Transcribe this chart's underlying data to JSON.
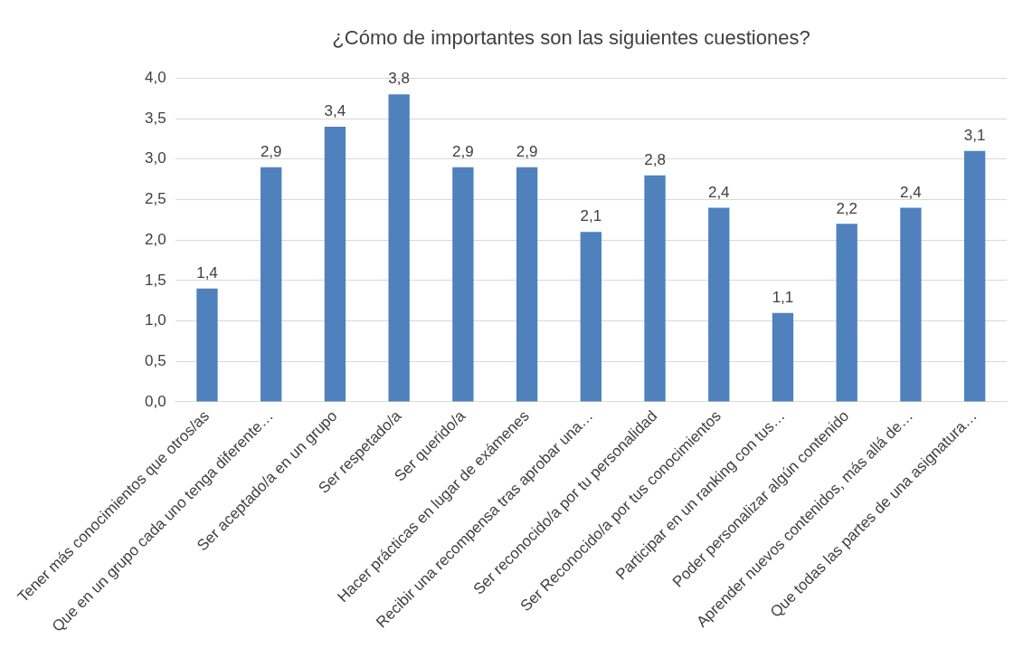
{
  "chart_data": {
    "type": "bar",
    "title": "¿Cómo de importantes son las siguientes cuestiones?",
    "categories": [
      "Tener más conocimientos que otros/as",
      "Que en un grupo cada uno tenga diferente…",
      "Ser aceptado/a en un grupo",
      "Ser respetado/a",
      "Ser querido/a",
      "Hacer prácticas en lugar de exámenes",
      "Recibir una recompensa tras aprobar una…",
      "Ser reconocido/a por tu personalidad",
      "Ser Reconocido/a por tus conocimientos",
      "Participar en un ranking con tus…",
      "Poder personalizar algún contenido",
      "Aprender nuevos contenidos, más allá de…",
      "Que todas las partes de una asignatura…"
    ],
    "values": [
      1.4,
      2.9,
      3.4,
      3.8,
      2.9,
      2.9,
      2.1,
      2.8,
      2.4,
      1.1,
      2.2,
      2.4,
      3.1
    ],
    "value_labels": [
      "1,4",
      "2,9",
      "3,4",
      "3,8",
      "2,9",
      "2,9",
      "2,1",
      "2,8",
      "2,4",
      "1,1",
      "2,2",
      "2,4",
      "3,1"
    ],
    "color": "#4f81bd",
    "ylim": [
      0,
      4
    ],
    "yticks": [
      {
        "value": 0,
        "label": "0,0"
      },
      {
        "value": 0.5,
        "label": "0,5"
      },
      {
        "value": 1,
        "label": "1,0"
      },
      {
        "value": 1.5,
        "label": "1,5"
      },
      {
        "value": 2,
        "label": "2,0"
      },
      {
        "value": 2.5,
        "label": "2,5"
      },
      {
        "value": 3,
        "label": "3,0"
      },
      {
        "value": 3.5,
        "label": "3,5"
      },
      {
        "value": 4,
        "label": "4,0"
      }
    ],
    "grid": "y",
    "legend": false
  }
}
